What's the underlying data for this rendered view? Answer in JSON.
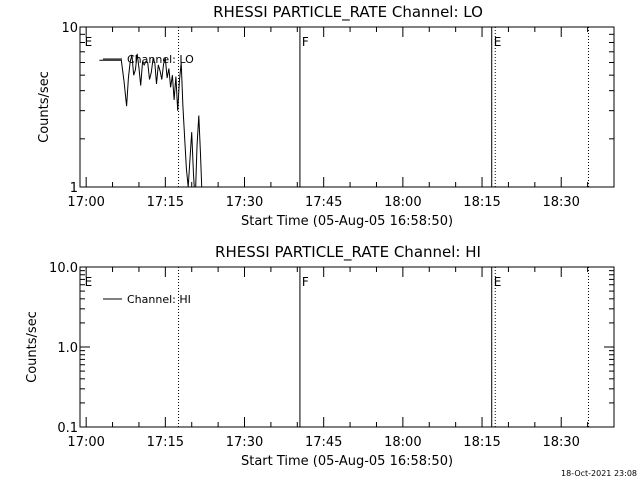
{
  "footer_timestamp": "18-Oct-2021 23:08",
  "chart_data": [
    {
      "type": "line",
      "title": "RHESSI PARTICLE_RATE Channel: LO",
      "xlabel": "Start Time (05-Aug-05 16:58:50)",
      "ylabel": "Counts/sec",
      "y_scale": "log",
      "ylim": [
        1,
        10
      ],
      "y_ticks": [
        {
          "value": 1,
          "label": "1"
        },
        {
          "value": 10,
          "label": "10"
        }
      ],
      "xlim": [
        "16:58:50",
        "18:40:00"
      ],
      "x_ticks": [
        {
          "value": "17:00",
          "label": "17:00"
        },
        {
          "value": "17:15",
          "label": "17:15"
        },
        {
          "value": "17:30",
          "label": "17:30"
        },
        {
          "value": "17:45",
          "label": "17:45"
        },
        {
          "value": "18:00",
          "label": "18:00"
        },
        {
          "value": "18:15",
          "label": "18:15"
        },
        {
          "value": "18:30",
          "label": "18:30"
        }
      ],
      "legend": {
        "entries": [
          "Channel: LO"
        ],
        "placement": "top-left"
      },
      "markers": [
        {
          "time": "16:59:20",
          "style": "none",
          "label": "E"
        },
        {
          "time": "17:17:30",
          "style": "dotted",
          "label": ""
        },
        {
          "time": "17:40:30",
          "style": "solid",
          "label": "F"
        },
        {
          "time": "18:16:50",
          "style": "solid",
          "label": "E"
        },
        {
          "time": "18:17:30",
          "style": "dotted",
          "label": ""
        },
        {
          "time": "18:35:10",
          "style": "dotted",
          "label": ""
        }
      ],
      "series": [
        {
          "x": [
            "17:02:30",
            "17:06:40",
            "17:07:10",
            "17:07:40",
            "17:08:00",
            "17:08:20",
            "17:08:40",
            "17:09:00",
            "17:09:20",
            "17:09:40",
            "17:10:00",
            "17:10:20",
            "17:10:40",
            "17:11:00",
            "17:11:20",
            "17:11:40",
            "17:12:00",
            "17:12:20",
            "17:12:40",
            "17:13:00",
            "17:13:20",
            "17:13:40",
            "17:14:00",
            "17:14:20",
            "17:14:40",
            "17:15:00",
            "17:15:20",
            "17:15:40",
            "17:16:00",
            "17:16:20",
            "17:16:40",
            "17:17:00",
            "17:17:20",
            "17:17:40",
            "17:18:00",
            "17:18:20",
            "17:18:40",
            "17:19:00",
            "17:19:20",
            "17:19:40",
            "17:20:00",
            "17:20:20",
            "17:20:40",
            "17:21:00",
            "17:21:20",
            "17:21:40",
            "17:22:00"
          ],
          "values": [
            6.2,
            6.2,
            4.6,
            3.2,
            4.8,
            6.0,
            6.7,
            5.0,
            5.4,
            6.8,
            5.6,
            4.3,
            6.0,
            5.8,
            6.1,
            6.0,
            4.7,
            5.2,
            6.3,
            6.0,
            4.4,
            5.8,
            5.3,
            4.7,
            5.9,
            6.4,
            4.8,
            5.5,
            4.2,
            5.0,
            3.5,
            4.9,
            3.0,
            4.6,
            6.0,
            3.2,
            2.0,
            1.3,
            1.0,
            1.5,
            2.2,
            1.2,
            0.8,
            1.8,
            2.8,
            1.6,
            0.8
          ]
        }
      ]
    },
    {
      "type": "line",
      "title": "RHESSI PARTICLE_RATE Channel: HI",
      "xlabel": "Start Time (05-Aug-05 16:58:50)",
      "ylabel": "Counts/sec",
      "y_scale": "log",
      "ylim": [
        0.1,
        10
      ],
      "y_ticks": [
        {
          "value": 0.1,
          "label": "0.1"
        },
        {
          "value": 1,
          "label": "1.0"
        },
        {
          "value": 10,
          "label": "10.0"
        }
      ],
      "xlim": [
        "16:58:50",
        "18:40:00"
      ],
      "x_ticks": [
        {
          "value": "17:00",
          "label": "17:00"
        },
        {
          "value": "17:15",
          "label": "17:15"
        },
        {
          "value": "17:30",
          "label": "17:30"
        },
        {
          "value": "17:45",
          "label": "17:45"
        },
        {
          "value": "18:00",
          "label": "18:00"
        },
        {
          "value": "18:15",
          "label": "18:15"
        },
        {
          "value": "18:30",
          "label": "18:30"
        }
      ],
      "legend": {
        "entries": [
          "Channel: HI"
        ],
        "placement": "top-left"
      },
      "markers": [
        {
          "time": "16:59:20",
          "style": "none",
          "label": "E"
        },
        {
          "time": "17:17:30",
          "style": "dotted",
          "label": ""
        },
        {
          "time": "17:40:30",
          "style": "solid",
          "label": "F"
        },
        {
          "time": "18:16:50",
          "style": "solid",
          "label": "E"
        },
        {
          "time": "18:17:30",
          "style": "dotted",
          "label": ""
        },
        {
          "time": "18:35:10",
          "style": "dotted",
          "label": ""
        }
      ],
      "series": [
        {
          "x": [],
          "values": []
        }
      ]
    }
  ]
}
